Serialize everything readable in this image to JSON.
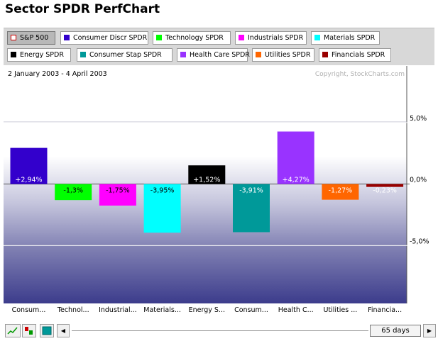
{
  "page": {
    "title": "Sector SPDR PerfChart"
  },
  "tabs": [
    {
      "label": "S&P 500",
      "color": "#ffffff",
      "border": "#cc0000",
      "selected": true
    },
    {
      "label": "Consumer Discr SPDR",
      "color": "#3300cc"
    },
    {
      "label": "Technology SPDR",
      "color": "#00ff00"
    },
    {
      "label": "Industrials SPDR",
      "color": "#ff00ff"
    },
    {
      "label": "Materials SPDR",
      "color": "#00ffff"
    },
    {
      "label": "Energy SPDR",
      "color": "#000000"
    },
    {
      "label": "Consumer Stap SPDR",
      "color": "#009999"
    },
    {
      "label": "Health Care SPDR",
      "color": "#9933ff"
    },
    {
      "label": "Utilities SPDR",
      "color": "#ff6600"
    },
    {
      "label": "Financials SPDR",
      "color": "#990000"
    }
  ],
  "chart_data": {
    "type": "bar",
    "date_range": "2 January 2003 - 4 April 2003",
    "copyright": "Copyright, StockCharts.com",
    "categories": [
      "Consum...",
      "Technol...",
      "Industrial...",
      "Materials...",
      "Energy S...",
      "Consum...",
      "Health C...",
      "Utilities ...",
      "Financia..."
    ],
    "values": [
      2.94,
      -1.3,
      -1.75,
      -3.95,
      1.52,
      -3.91,
      4.27,
      -1.27,
      -0.23
    ],
    "value_labels": [
      "+2,94%",
      "-1,3%",
      "-1,75%",
      "-3,95%",
      "+1,52%",
      "-3,91%",
      "+4,27%",
      "-1,27%",
      "-0,23%"
    ],
    "colors": [
      "#3300cc",
      "#00ff00",
      "#ff00ff",
      "#00ffff",
      "#000000",
      "#009999",
      "#9933ff",
      "#ff6600",
      "#990000"
    ],
    "label_colors": [
      "#ffffff",
      "#000000",
      "#000000",
      "#000000",
      "#ffffff",
      "#ffffff",
      "#ffffff",
      "#ffffff",
      "#ffffff"
    ],
    "ylim": [
      -9.7,
      9.6
    ],
    "yticks": [
      5,
      0,
      -5
    ],
    "ytick_labels": [
      "5,0%",
      "0,0%",
      "-5,0%"
    ],
    "grid": true
  },
  "controls": {
    "period_label": "65 days",
    "scroll_left": "◀",
    "scroll_right": "▶"
  }
}
